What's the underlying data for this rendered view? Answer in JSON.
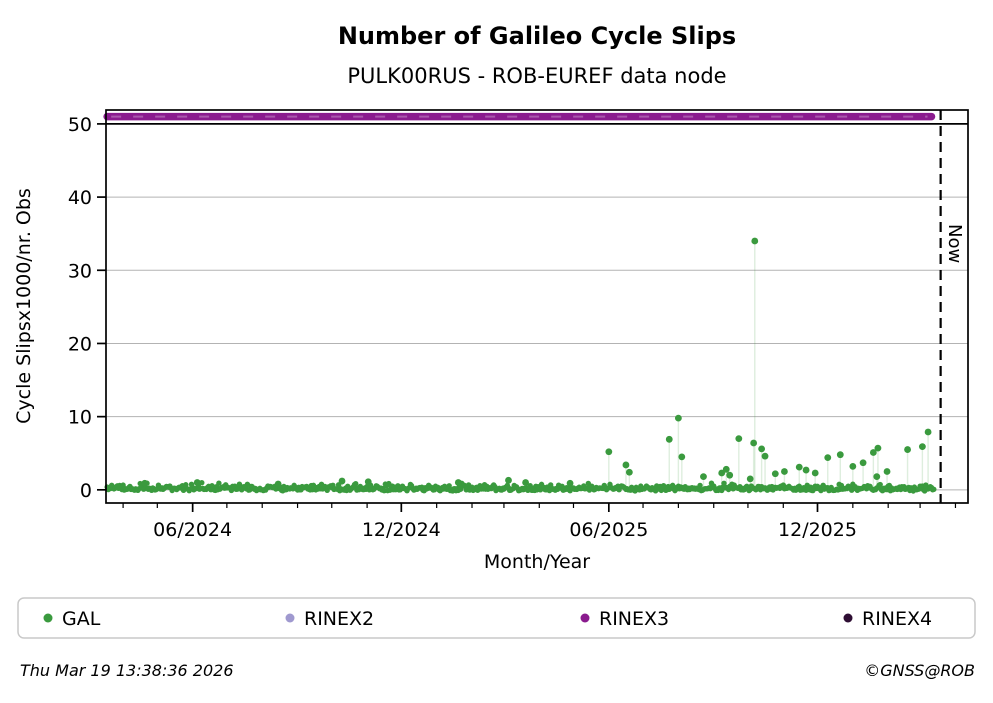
{
  "header": {
    "title": "Number of Galileo Cycle Slips",
    "subtitle": "PULK00RUS - ROB-EUREF data node"
  },
  "footer": {
    "timestamp": "Thu Mar 19 13:38:36 2026",
    "copyright": "©GNSS@ROB"
  },
  "chart_data": {
    "type": "scatter",
    "title": "Number of Galileo Cycle Slips",
    "subtitle": "PULK00RUS - ROB-EUREF data node",
    "xlabel": "Month/Year",
    "ylabel": "Cycle Slipsx1000/nr. Obs",
    "x_start": "2024-03-17",
    "x_end": "2026-04-12",
    "ylim": [
      -1.8,
      51.9
    ],
    "yticks": [
      0,
      10,
      20,
      30,
      40,
      50
    ],
    "xticks": [
      {
        "date": "2024-06-01",
        "label": "06/2024"
      },
      {
        "date": "2024-12-01",
        "label": "12/2024"
      },
      {
        "date": "2025-06-01",
        "label": "06/2025"
      },
      {
        "date": "2025-12-01",
        "label": "12/2025"
      }
    ],
    "minor_xticks": "monthly",
    "grid": true,
    "grid_color": "#b3b3b3",
    "reference_line": {
      "y": 50,
      "color": "#000000"
    },
    "now_line": {
      "date": "2026-03-19",
      "label": "Now",
      "color": "#000000",
      "style": "dashed"
    },
    "legend": [
      {
        "label": "GAL",
        "color": "#3a9a3e"
      },
      {
        "label": "RINEX2",
        "color": "#9f99cf"
      },
      {
        "label": "RINEX3",
        "color": "#8a1b8e"
      },
      {
        "label": "RINEX4",
        "color": "#2e0e33"
      }
    ],
    "series": [
      {
        "name": "GAL",
        "render": "scatter-stem",
        "color": "#3a9a3e",
        "stem_color": "rgba(58,154,62,0.17)",
        "baseline": {
          "start": "2024-03-18",
          "end": "2026-03-13",
          "step_days": 1,
          "typical_min": -0.25,
          "typical_max": 0.9,
          "seed": 20260319
        },
        "spikes": [
          [
            "2024-04-20",
            0.9
          ],
          [
            "2024-06-05",
            1.0
          ],
          [
            "2024-08-15",
            0.8
          ],
          [
            "2024-10-10",
            1.2
          ],
          [
            "2024-11-02",
            1.1
          ],
          [
            "2025-01-20",
            1.0
          ],
          [
            "2025-03-05",
            1.3
          ],
          [
            "2025-03-20",
            1.0
          ],
          [
            "2025-04-28",
            0.9
          ],
          [
            "2025-06-01",
            5.2
          ],
          [
            "2025-06-16",
            3.4
          ],
          [
            "2025-06-19",
            2.4
          ],
          [
            "2025-07-24",
            6.9
          ],
          [
            "2025-08-01",
            9.8
          ],
          [
            "2025-08-04",
            4.5
          ],
          [
            "2025-08-23",
            1.8
          ],
          [
            "2025-09-08",
            2.3
          ],
          [
            "2025-09-12",
            2.8
          ],
          [
            "2025-09-15",
            2.0
          ],
          [
            "2025-09-23",
            7.0
          ],
          [
            "2025-10-03",
            1.5
          ],
          [
            "2025-10-06",
            6.4
          ],
          [
            "2025-10-07",
            34.0
          ],
          [
            "2025-10-13",
            5.6
          ],
          [
            "2025-10-16",
            4.6
          ],
          [
            "2025-10-25",
            2.2
          ],
          [
            "2025-11-02",
            2.5
          ],
          [
            "2025-11-15",
            3.1
          ],
          [
            "2025-11-21",
            2.7
          ],
          [
            "2025-11-29",
            2.3
          ],
          [
            "2025-12-10",
            4.4
          ],
          [
            "2025-12-21",
            4.8
          ],
          [
            "2026-01-01",
            3.2
          ],
          [
            "2026-01-10",
            3.7
          ],
          [
            "2026-01-19",
            5.1
          ],
          [
            "2026-01-22",
            1.8
          ],
          [
            "2026-01-23",
            5.7
          ],
          [
            "2026-01-31",
            2.5
          ],
          [
            "2026-02-18",
            5.5
          ],
          [
            "2026-03-03",
            5.9
          ],
          [
            "2026-03-08",
            7.9
          ]
        ]
      },
      {
        "name": "RINEX3",
        "render": "thick-line",
        "color": "#8a1b8e",
        "highlight_color": "#b267b5",
        "value": 51.0,
        "start": "2024-03-18",
        "end": "2026-03-11"
      }
    ]
  }
}
